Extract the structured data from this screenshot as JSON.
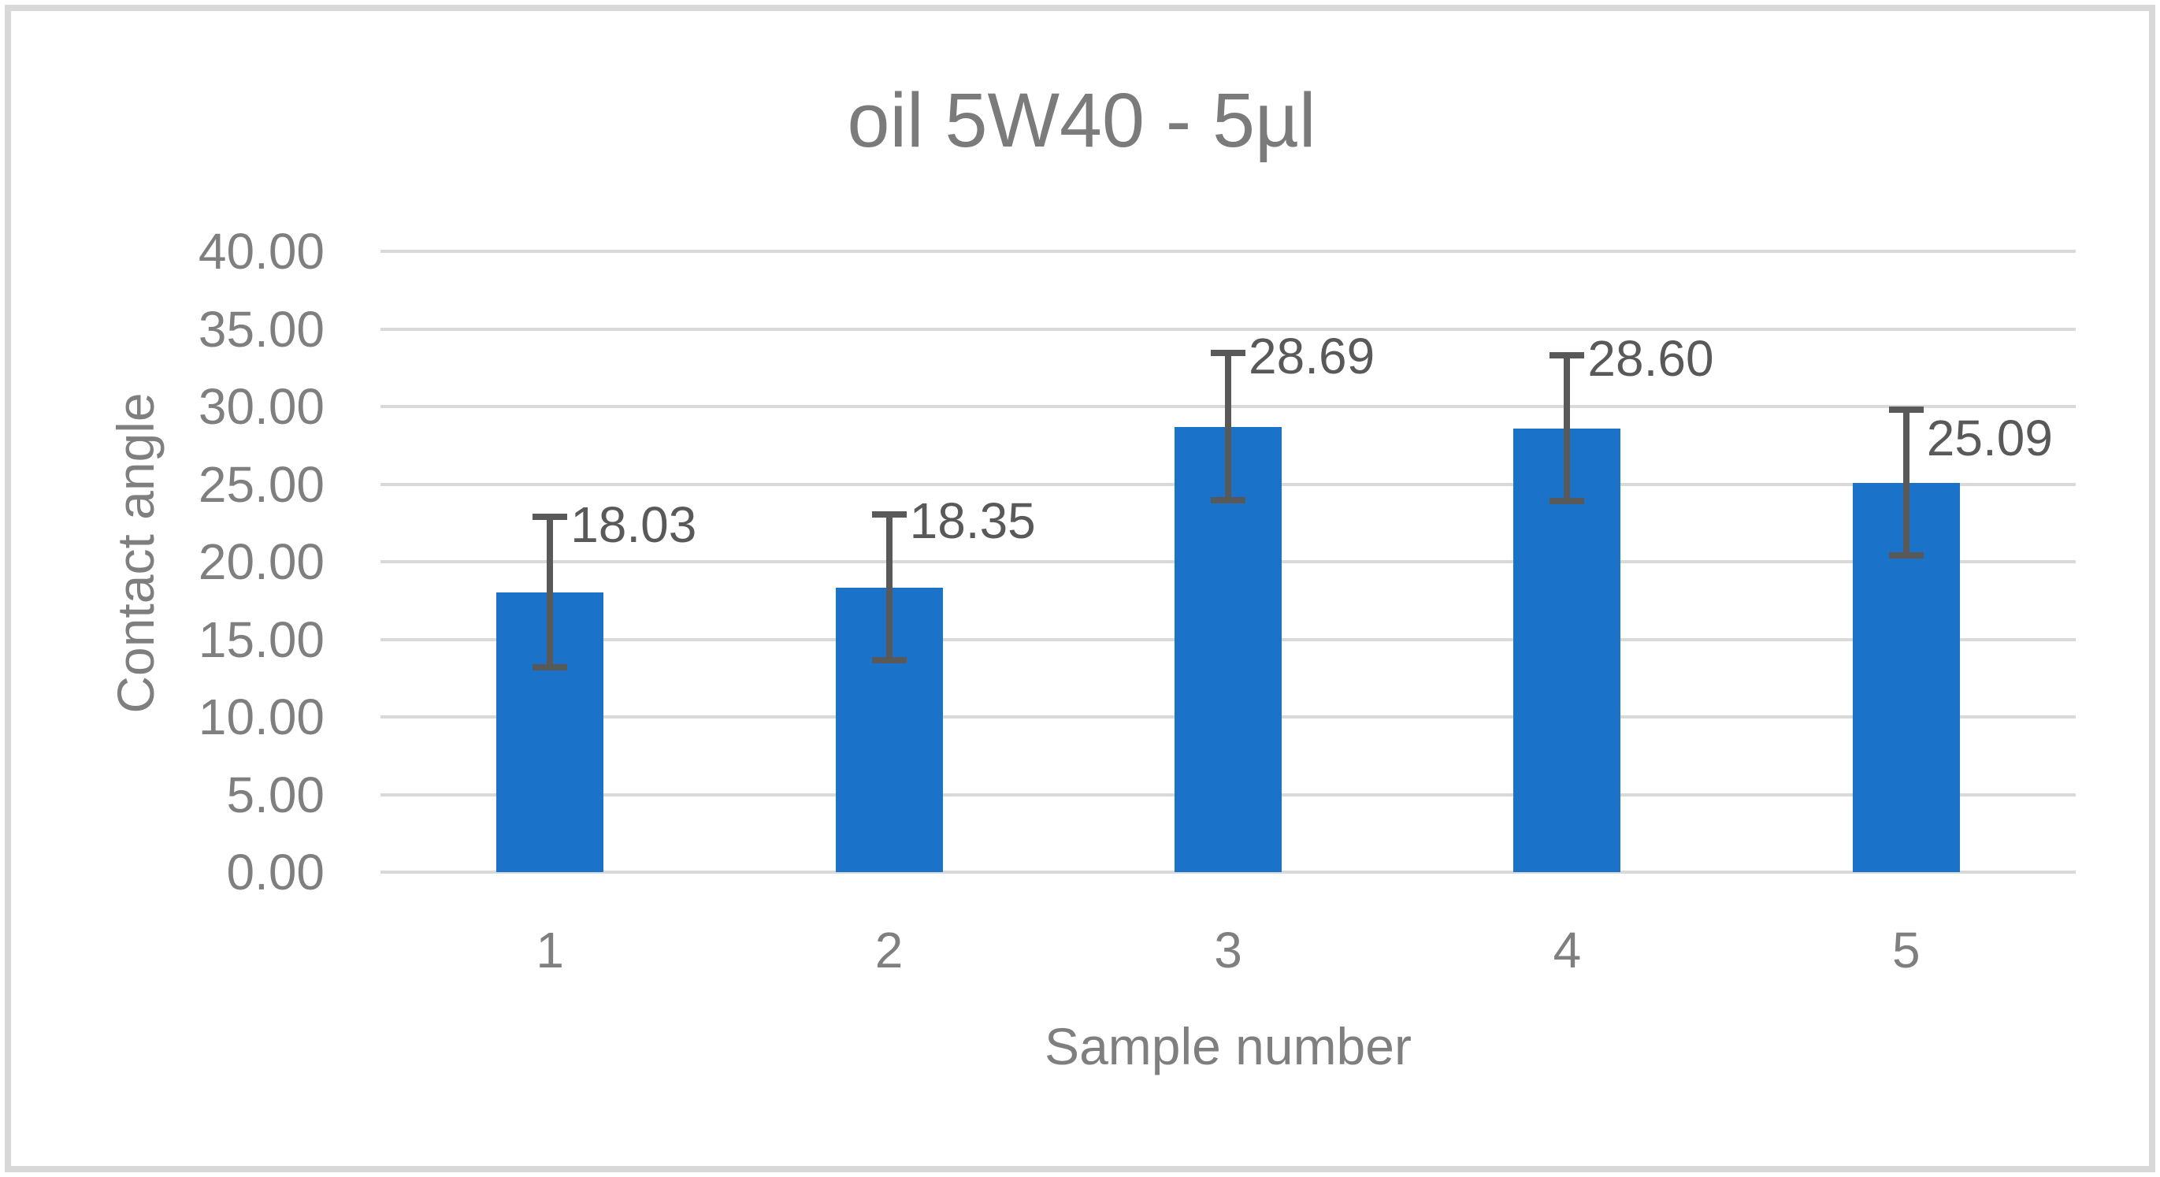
{
  "chart_data": {
    "type": "bar",
    "title": "oil 5W40 - 5µl",
    "xlabel": "Sample number",
    "ylabel": "Contact angle",
    "categories": [
      "1",
      "2",
      "3",
      "4",
      "5"
    ],
    "values": [
      18.03,
      18.35,
      28.69,
      28.6,
      25.09
    ],
    "value_labels": [
      "18.03",
      "18.35",
      "28.69",
      "28.60",
      "25.09"
    ],
    "errors": [
      4.85,
      4.7,
      4.75,
      4.7,
      4.7
    ],
    "ylim": [
      0,
      40
    ],
    "ytick_step": 5,
    "ytick_labels": [
      "0.00",
      "5.00",
      "10.00",
      "15.00",
      "20.00",
      "25.00",
      "30.00",
      "35.00",
      "40.00"
    ],
    "grid": "horizontal-only",
    "legend": "none",
    "colors": {
      "bar": "#1A73C8",
      "error_bar": "#595959",
      "data_label": "#595959",
      "axis_text": "#7F7F7F",
      "title_text": "#7B7B7B",
      "gridline": "#D9D9D9",
      "border": "#D8D8D8",
      "background": "#FFFFFF"
    }
  }
}
